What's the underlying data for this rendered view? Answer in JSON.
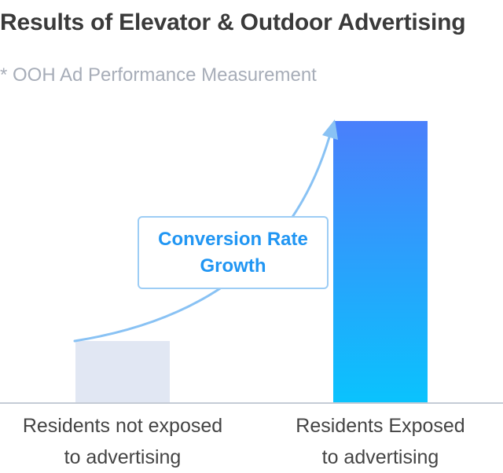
{
  "chart_data": {
    "type": "bar",
    "title": "Results of Elevator & Outdoor Advertising",
    "subtitle": "* OOH Ad Performance Measurement",
    "categories": [
      "Residents not exposed to advertising",
      "Residents Exposed to advertising"
    ],
    "category_lines": [
      [
        "Residents not exposed",
        "to advertising"
      ],
      [
        "Residents Exposed",
        "to advertising"
      ]
    ],
    "values": [
      22,
      100
    ],
    "ylim": [
      0,
      100
    ],
    "yaxis_visible": false,
    "grid": false,
    "bar_colors": [
      {
        "solid": "#e1e7f3"
      },
      {
        "gradient_top": "#4a7ffb",
        "gradient_bottom": "#0ac3fd"
      }
    ],
    "annotation": {
      "lines": [
        "Conversion Rate",
        "Growth"
      ],
      "color": "#2196f3",
      "border_color": "#9dcdf5",
      "arrow_color": "#89c2f4"
    },
    "axis_color": "#c5ccd6"
  }
}
